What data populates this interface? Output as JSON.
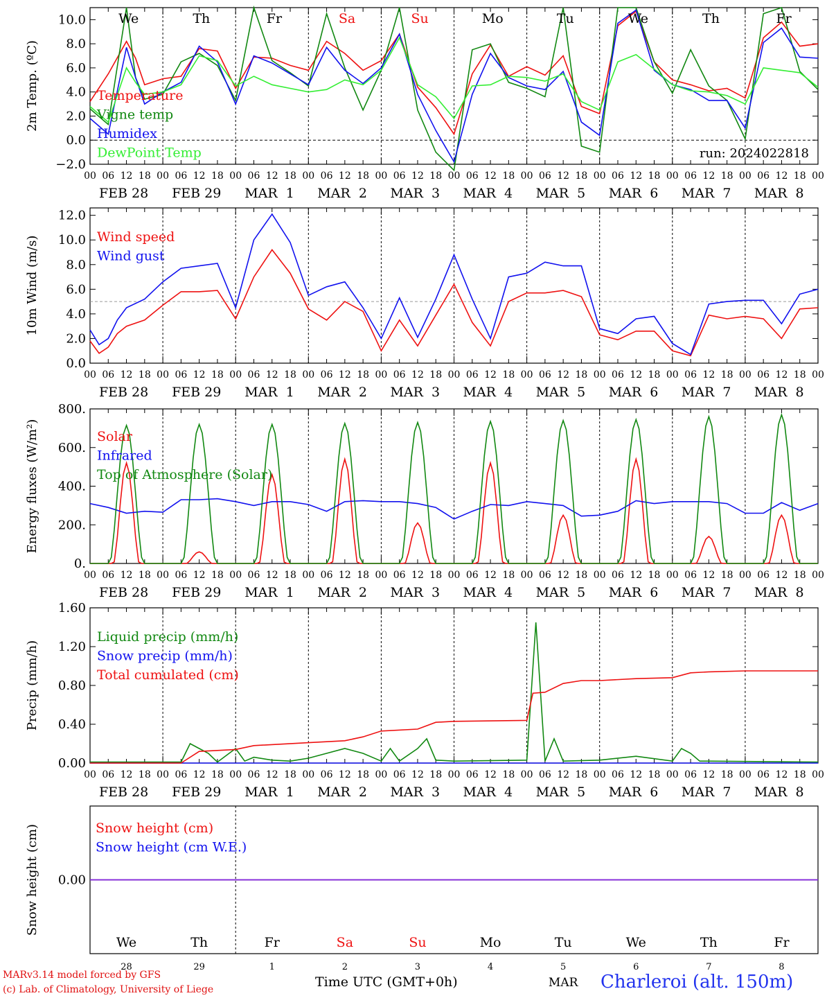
{
  "colors": {
    "red": "#ee1111",
    "dark_green": "#118811",
    "blue": "#1111ee",
    "light_green": "#33ee33",
    "purple": "#8a2be2",
    "ref_dash": "#999999"
  },
  "day_labels": [
    "We",
    "Th",
    "Fr",
    "Sa",
    "Su",
    "Mo",
    "Tu",
    "We",
    "Th",
    "Fr"
  ],
  "weekend_days": [
    3,
    4
  ],
  "date_labels": [
    "FEB 28",
    "FEB 29",
    "MAR  1",
    "MAR  2",
    "MAR  3",
    "MAR  4",
    "MAR  5",
    "MAR  6",
    "MAR  7",
    "MAR  8"
  ],
  "hour_ticks": [
    "00",
    "06",
    "12",
    "18"
  ],
  "last_tick": "00",
  "day_numbers": [
    "28",
    "29",
    "1",
    "2",
    "3",
    "4",
    "5",
    "6",
    "7",
    "8"
  ],
  "month_label": "MAR",
  "run_label": "run: 2024022818",
  "x_axis_title": "Time UTC (GMT+0h)",
  "credit": [
    "MARv3.14 model forced by GFS",
    "(c) Lab. of Climatology, University of Liege"
  ],
  "station": "Charleroi (alt. 150m)",
  "chart_data": [
    {
      "type": "line",
      "x_unit": "hours since FEB 28 00 UTC",
      "ylabel": "2m Temp. (ºC)",
      "ylim": [
        -2,
        11
      ],
      "yticks": [
        -2,
        0,
        2,
        4,
        6,
        8,
        10
      ],
      "tick_labels": [
        "−2.0",
        "0.0",
        "2.0",
        "4.0",
        "6.0",
        "8.0",
        "10.0"
      ],
      "ref_line": 0,
      "series": [
        {
          "name": "Temperature",
          "color": "#ee1111",
          "x": [
            0,
            6,
            12,
            15,
            18,
            24,
            30,
            36,
            42,
            48,
            54,
            60,
            66,
            72,
            78,
            84,
            90,
            96,
            102,
            108,
            114,
            120,
            126,
            132,
            138,
            144,
            150,
            156,
            162,
            168,
            174,
            180,
            186,
            192,
            198,
            204,
            210,
            216,
            222,
            228,
            234,
            240
          ],
          "y": [
            3.2,
            5.5,
            8.2,
            6.8,
            4.6,
            5.1,
            5.3,
            7.6,
            7.4,
            4.3,
            6.9,
            6.8,
            6.2,
            5.8,
            8.2,
            7.2,
            5.8,
            6.6,
            8.8,
            4.4,
            2.7,
            0.5,
            5.5,
            7.9,
            5.3,
            6.1,
            5.4,
            7.0,
            2.8,
            2.2,
            9.5,
            10.7,
            6.5,
            5.0,
            4.6,
            4.1,
            4.3,
            3.5,
            8.5,
            9.8,
            7.8,
            8.0
          ]
        },
        {
          "name": "Vigne temp",
          "color": "#118811",
          "x": [
            0,
            6,
            12,
            15,
            18,
            24,
            30,
            36,
            42,
            48,
            54,
            60,
            66,
            72,
            78,
            84,
            90,
            96,
            102,
            108,
            114,
            120,
            126,
            132,
            138,
            144,
            150,
            156,
            162,
            168,
            174,
            180,
            186,
            192,
            198,
            204,
            210,
            216,
            222,
            228,
            234,
            240
          ],
          "y": [
            2.6,
            1.3,
            11.0,
            5.2,
            3.4,
            3.8,
            6.5,
            7.2,
            6.2,
            3.3,
            11.0,
            6.6,
            5.6,
            4.5,
            10.5,
            6.0,
            2.5,
            5.8,
            11.0,
            2.5,
            -1.0,
            -2.5,
            7.5,
            8.0,
            4.8,
            4.3,
            3.6,
            11.0,
            -0.5,
            -1.0,
            11.0,
            11.0,
            6.5,
            3.9,
            7.5,
            4.5,
            3.3,
            0.1,
            10.5,
            11.0,
            5.7,
            4.2
          ]
        },
        {
          "name": "Humidex",
          "color": "#1111ee",
          "x": [
            0,
            6,
            12,
            15,
            18,
            24,
            30,
            36,
            42,
            48,
            54,
            60,
            66,
            72,
            78,
            84,
            90,
            96,
            102,
            108,
            114,
            120,
            126,
            132,
            138,
            144,
            150,
            156,
            162,
            168,
            174,
            180,
            186,
            192,
            198,
            204,
            210,
            216,
            222,
            228,
            234,
            240
          ],
          "y": [
            1.8,
            0.5,
            7.7,
            5.2,
            3.0,
            4.0,
            4.8,
            7.8,
            6.5,
            3.0,
            7.0,
            6.4,
            5.5,
            4.6,
            7.7,
            5.8,
            4.7,
            6.0,
            8.8,
            3.8,
            0.8,
            -1.8,
            3.8,
            7.2,
            5.2,
            4.5,
            4.2,
            5.7,
            1.5,
            0.4,
            9.7,
            10.8,
            5.8,
            4.6,
            4.2,
            3.3,
            3.3,
            1.0,
            8.1,
            9.3,
            6.9,
            6.8
          ]
        },
        {
          "name": "DewPoint Temp",
          "color": "#33ee33",
          "x": [
            0,
            6,
            12,
            15,
            18,
            24,
            30,
            36,
            42,
            48,
            54,
            60,
            66,
            72,
            78,
            84,
            90,
            96,
            102,
            108,
            114,
            120,
            126,
            132,
            138,
            144,
            150,
            156,
            162,
            168,
            174,
            180,
            186,
            192,
            198,
            204,
            210,
            216,
            222,
            228,
            234,
            240
          ],
          "y": [
            2.8,
            1.5,
            6.0,
            4.8,
            3.8,
            4.0,
            4.6,
            7.0,
            6.6,
            4.5,
            5.3,
            4.6,
            4.3,
            4.0,
            4.2,
            5.0,
            4.6,
            5.8,
            8.5,
            4.6,
            3.6,
            1.8,
            4.5,
            4.6,
            5.3,
            5.2,
            4.9,
            5.5,
            3.2,
            2.5,
            6.5,
            7.1,
            5.9,
            4.6,
            4.1,
            4.0,
            3.7,
            3.0,
            6.0,
            5.8,
            5.6,
            4.4
          ]
        }
      ]
    },
    {
      "type": "line",
      "x_unit": "hours since FEB 28 00 UTC",
      "ylabel": "10m Wind (m/s)",
      "ylim": [
        0,
        12.6
      ],
      "yticks": [
        0,
        2,
        4,
        6,
        8,
        10,
        12
      ],
      "tick_labels": [
        "0.0",
        "2.0",
        "4.0",
        "6.0",
        "8.0",
        "10.0",
        "12.0"
      ],
      "ref_line": 5,
      "series": [
        {
          "name": "Wind speed",
          "color": "#ee1111",
          "x": [
            0,
            3,
            6,
            9,
            12,
            18,
            24,
            30,
            36,
            42,
            48,
            54,
            60,
            66,
            72,
            78,
            84,
            90,
            96,
            102,
            108,
            114,
            120,
            126,
            132,
            138,
            144,
            150,
            156,
            162,
            168,
            174,
            180,
            186,
            192,
            198,
            204,
            210,
            216,
            222,
            228,
            234,
            240
          ],
          "y": [
            1.8,
            0.8,
            1.3,
            2.4,
            3.0,
            3.5,
            4.7,
            5.8,
            5.8,
            5.9,
            3.6,
            7.0,
            9.2,
            7.3,
            4.4,
            3.5,
            5.0,
            4.2,
            1.0,
            3.5,
            1.4,
            3.9,
            6.4,
            3.3,
            1.4,
            5.0,
            5.7,
            5.7,
            5.9,
            5.4,
            2.3,
            1.9,
            2.6,
            2.6,
            1.0,
            0.6,
            3.9,
            3.6,
            3.8,
            3.6,
            2.0,
            4.4,
            4.5
          ]
        },
        {
          "name": "Wind gust",
          "color": "#1111ee",
          "x": [
            0,
            3,
            6,
            9,
            12,
            18,
            24,
            30,
            36,
            42,
            48,
            54,
            60,
            66,
            72,
            78,
            84,
            90,
            96,
            102,
            108,
            114,
            120,
            126,
            132,
            138,
            144,
            150,
            156,
            162,
            168,
            174,
            180,
            186,
            192,
            198,
            204,
            210,
            216,
            222,
            228,
            234,
            240
          ],
          "y": [
            2.7,
            1.5,
            2.0,
            3.5,
            4.5,
            5.2,
            6.6,
            7.7,
            7.9,
            8.1,
            4.5,
            10.0,
            12.1,
            9.8,
            5.5,
            6.2,
            6.6,
            4.5,
            2.0,
            5.3,
            2.1,
            5.2,
            8.8,
            5.2,
            2.0,
            7.0,
            7.3,
            8.2,
            7.9,
            7.9,
            2.8,
            2.4,
            3.6,
            3.8,
            1.6,
            0.7,
            4.8,
            5.0,
            5.1,
            5.1,
            3.2,
            5.6,
            6.0
          ]
        }
      ]
    },
    {
      "type": "line",
      "x_unit": "hours since FEB 28 00 UTC",
      "ylabel": "Energy fluxes (W/m²)",
      "ylim": [
        0,
        800
      ],
      "yticks": [
        0,
        200,
        400,
        600,
        800
      ],
      "tick_labels": [
        "0.",
        "200.",
        "400.",
        "600.",
        "800."
      ],
      "series": [
        {
          "name": "Solar",
          "color": "#ee1111",
          "peaks": [
            520,
            60,
            460,
            540,
            210,
            520,
            250,
            540,
            140,
            250
          ]
        },
        {
          "name": "Infrared",
          "color": "#1111ee",
          "x": [
            0,
            6,
            12,
            18,
            24,
            30,
            36,
            42,
            48,
            54,
            60,
            66,
            72,
            78,
            84,
            90,
            96,
            102,
            108,
            114,
            120,
            126,
            132,
            138,
            144,
            150,
            156,
            162,
            168,
            174,
            180,
            186,
            192,
            198,
            204,
            210,
            216,
            222,
            228,
            234,
            240
          ],
          "y": [
            310,
            290,
            260,
            270,
            265,
            330,
            330,
            335,
            320,
            300,
            320,
            320,
            305,
            270,
            320,
            325,
            320,
            320,
            310,
            290,
            230,
            270,
            305,
            300,
            320,
            310,
            300,
            245,
            250,
            270,
            325,
            310,
            320,
            320,
            320,
            310,
            260,
            260,
            315,
            275,
            310
          ]
        },
        {
          "name": "Top of Atmosphere (Solar)",
          "color": "#118811",
          "peaks": [
            715,
            720,
            720,
            725,
            730,
            735,
            740,
            745,
            760,
            770
          ]
        }
      ]
    },
    {
      "type": "line",
      "x_unit": "hours since FEB 28 00 UTC",
      "ylabel": "Precip (mm/h)",
      "ylim": [
        0,
        1.6
      ],
      "yticks": [
        0,
        0.4,
        0.8,
        1.2,
        1.6
      ],
      "tick_labels": [
        "0.00",
        "0.40",
        "0.80",
        "1.20",
        "1.60"
      ],
      "series": [
        {
          "name": "Liquid precip (mm/h)",
          "color": "#118811",
          "x": [
            0,
            30,
            33,
            36,
            39,
            42,
            48,
            51,
            54,
            60,
            66,
            72,
            84,
            90,
            96,
            99,
            102,
            108,
            111,
            114,
            120,
            144,
            147,
            150,
            153,
            156,
            168,
            180,
            192,
            195,
            198,
            201,
            204,
            240
          ],
          "y": [
            0.01,
            0.01,
            0.2,
            0.15,
            0.1,
            0.01,
            0.15,
            0.02,
            0.06,
            0.03,
            0.02,
            0.05,
            0.15,
            0.1,
            0.02,
            0.15,
            0.02,
            0.15,
            0.25,
            0.03,
            0.02,
            0.03,
            1.45,
            0.02,
            0.25,
            0.02,
            0.03,
            0.07,
            0.02,
            0.15,
            0.1,
            0.02,
            0.02,
            0.01
          ]
        },
        {
          "name": "Snow precip (mm/h)",
          "color": "#1111ee",
          "x": [
            0,
            240
          ],
          "y": [
            0.0,
            0.0
          ]
        },
        {
          "name": "Total cumulated (cm)",
          "color": "#ee1111",
          "x": [
            0,
            30,
            36,
            42,
            48,
            54,
            72,
            84,
            90,
            96,
            108,
            114,
            120,
            144,
            146,
            150,
            156,
            162,
            168,
            180,
            192,
            198,
            204,
            216,
            240
          ],
          "y": [
            0.0,
            0.0,
            0.12,
            0.13,
            0.14,
            0.18,
            0.21,
            0.23,
            0.27,
            0.33,
            0.35,
            0.42,
            0.43,
            0.44,
            0.72,
            0.73,
            0.82,
            0.85,
            0.85,
            0.87,
            0.88,
            0.93,
            0.94,
            0.95,
            0.95
          ]
        }
      ]
    },
    {
      "type": "line",
      "x_unit": "hours since FEB 28 00 UTC",
      "ylabel": "Snow height (cm)",
      "ylim": [
        -1,
        1
      ],
      "yticks": [
        0
      ],
      "tick_labels": [
        "0.00"
      ],
      "series": [
        {
          "name": "Snow height (cm)",
          "color": "#ee1111",
          "x": [
            0,
            240
          ],
          "y": [
            0,
            0
          ]
        },
        {
          "name": "Snow height (cm W.E.)",
          "color": "#1111ee",
          "x": [
            0,
            240
          ],
          "y": [
            0,
            0
          ]
        }
      ]
    }
  ]
}
